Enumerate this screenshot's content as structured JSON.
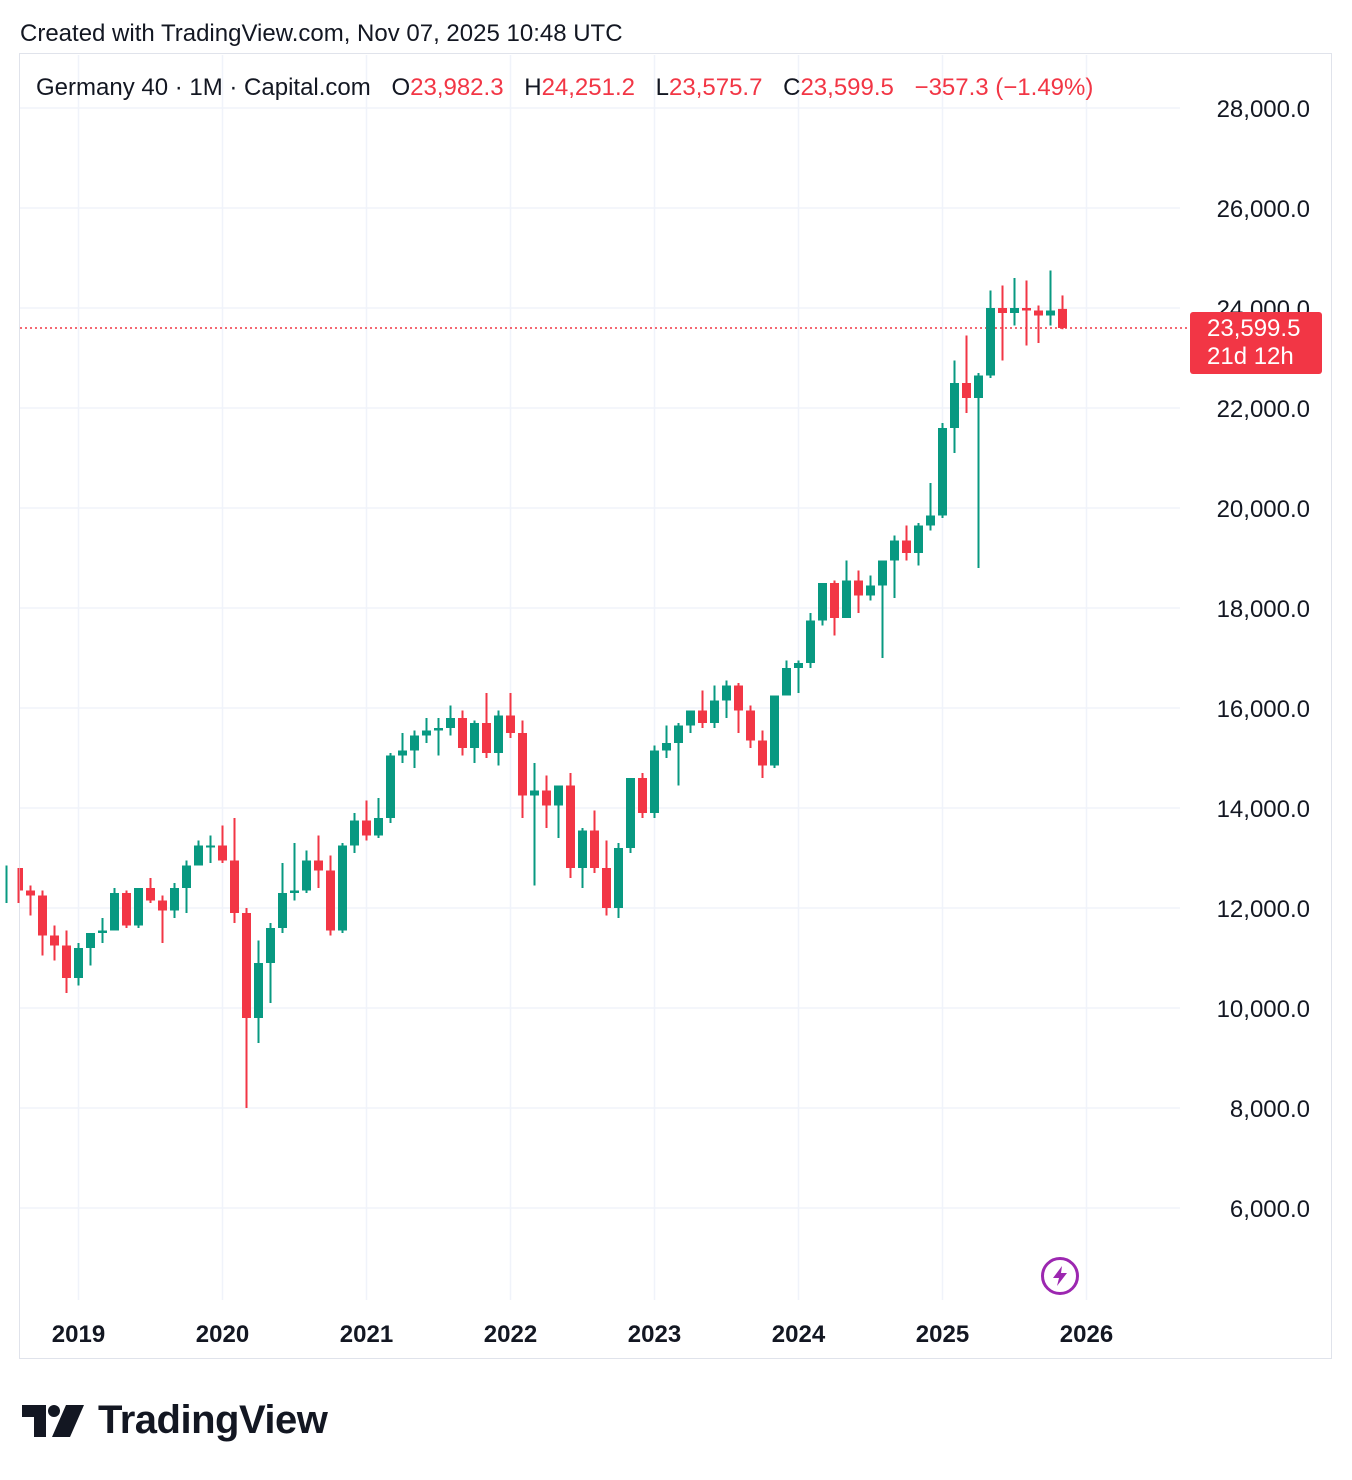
{
  "header": {
    "created_text": "Created with TradingView.com, Nov 07, 2025 10:48 UTC"
  },
  "legend": {
    "symbol": "Germany 40 · 1M · Capital.com",
    "open_label": "O",
    "open_value": "23,982.3",
    "high_label": "H",
    "high_value": "24,251.2",
    "low_label": "L",
    "low_value": "23,575.7",
    "close_label": "C",
    "close_value": "23,599.5",
    "change": "−357.3 (−1.49%)"
  },
  "price_tag": {
    "price": "23,599.5",
    "countdown": "21d 12h"
  },
  "brand": {
    "name": "TradingView"
  },
  "colors": {
    "up": "#089981",
    "down": "#f23645",
    "grid": "#f0f3fa",
    "text": "#131722",
    "accent": "#9c27b0"
  },
  "chart_data": {
    "type": "candlestick",
    "timeframe": "1M",
    "y_ticks": [
      "6,000.0",
      "8,000.0",
      "10,000.0",
      "12,000.0",
      "14,000.0",
      "16,000.0",
      "18,000.0",
      "20,000.0",
      "22,000.0",
      "24,000.0",
      "26,000.0",
      "28,000.0"
    ],
    "x_ticks": [
      "2019",
      "2020",
      "2021",
      "2022",
      "2023",
      "2024",
      "2025",
      "2026"
    ],
    "ylim": [
      4000,
      29000
    ],
    "grid": true,
    "current_price": 23599.5,
    "candles": [
      {
        "t": "2018-07",
        "o": 12300,
        "h": 12850,
        "l": 12100,
        "c": 12800
      },
      {
        "t": "2018-08",
        "o": 12800,
        "h": 12800,
        "l": 12100,
        "c": 12350
      },
      {
        "t": "2018-09",
        "o": 12350,
        "h": 12450,
        "l": 11850,
        "c": 12250
      },
      {
        "t": "2018-10",
        "o": 12250,
        "h": 12350,
        "l": 11050,
        "c": 11450
      },
      {
        "t": "2018-11",
        "o": 11450,
        "h": 11650,
        "l": 10950,
        "c": 11250
      },
      {
        "t": "2018-12",
        "o": 11250,
        "h": 11550,
        "l": 10300,
        "c": 10600
      },
      {
        "t": "2019-01",
        "o": 10600,
        "h": 11300,
        "l": 10450,
        "c": 11200
      },
      {
        "t": "2019-02",
        "o": 11200,
        "h": 11500,
        "l": 10850,
        "c": 11500
      },
      {
        "t": "2019-03",
        "o": 11500,
        "h": 11800,
        "l": 11300,
        "c": 11550
      },
      {
        "t": "2019-04",
        "o": 11550,
        "h": 12400,
        "l": 11550,
        "c": 12300
      },
      {
        "t": "2019-05",
        "o": 12300,
        "h": 12350,
        "l": 11600,
        "c": 11650
      },
      {
        "t": "2019-06",
        "o": 11650,
        "h": 12400,
        "l": 11600,
        "c": 12400
      },
      {
        "t": "2019-07",
        "o": 12400,
        "h": 12600,
        "l": 12100,
        "c": 12150
      },
      {
        "t": "2019-08",
        "o": 12150,
        "h": 12250,
        "l": 11300,
        "c": 11950
      },
      {
        "t": "2019-09",
        "o": 11950,
        "h": 12500,
        "l": 11800,
        "c": 12400
      },
      {
        "t": "2019-10",
        "o": 12400,
        "h": 12950,
        "l": 11900,
        "c": 12850
      },
      {
        "t": "2019-11",
        "o": 12850,
        "h": 13350,
        "l": 12850,
        "c": 13250
      },
      {
        "t": "2019-12",
        "o": 13250,
        "h": 13450,
        "l": 12900,
        "c": 13250
      },
      {
        "t": "2020-01",
        "o": 13250,
        "h": 13650,
        "l": 12900,
        "c": 12950
      },
      {
        "t": "2020-02",
        "o": 12950,
        "h": 13800,
        "l": 11700,
        "c": 11900
      },
      {
        "t": "2020-03",
        "o": 11900,
        "h": 12000,
        "l": 8000,
        "c": 9800
      },
      {
        "t": "2020-04",
        "o": 9800,
        "h": 11350,
        "l": 9300,
        "c": 10900
      },
      {
        "t": "2020-05",
        "o": 10900,
        "h": 11700,
        "l": 10100,
        "c": 11600
      },
      {
        "t": "2020-06",
        "o": 11600,
        "h": 12900,
        "l": 11500,
        "c": 12300
      },
      {
        "t": "2020-07",
        "o": 12300,
        "h": 13300,
        "l": 12150,
        "c": 12350
      },
      {
        "t": "2020-08",
        "o": 12350,
        "h": 13150,
        "l": 12300,
        "c": 12950
      },
      {
        "t": "2020-09",
        "o": 12950,
        "h": 13450,
        "l": 12400,
        "c": 12750
      },
      {
        "t": "2020-10",
        "o": 12750,
        "h": 13050,
        "l": 11450,
        "c": 11550
      },
      {
        "t": "2020-11",
        "o": 11550,
        "h": 13300,
        "l": 11500,
        "c": 13250
      },
      {
        "t": "2020-12",
        "o": 13250,
        "h": 13900,
        "l": 13100,
        "c": 13750
      },
      {
        "t": "2021-01",
        "o": 13750,
        "h": 14150,
        "l": 13350,
        "c": 13450
      },
      {
        "t": "2021-02",
        "o": 13450,
        "h": 14200,
        "l": 13400,
        "c": 13800
      },
      {
        "t": "2021-03",
        "o": 13800,
        "h": 15100,
        "l": 13700,
        "c": 15050
      },
      {
        "t": "2021-04",
        "o": 15050,
        "h": 15500,
        "l": 14900,
        "c": 15150
      },
      {
        "t": "2021-05",
        "o": 15150,
        "h": 15550,
        "l": 14800,
        "c": 15450
      },
      {
        "t": "2021-06",
        "o": 15450,
        "h": 15800,
        "l": 15300,
        "c": 15550
      },
      {
        "t": "2021-07",
        "o": 15550,
        "h": 15800,
        "l": 15050,
        "c": 15600
      },
      {
        "t": "2021-08",
        "o": 15600,
        "h": 16050,
        "l": 15450,
        "c": 15800
      },
      {
        "t": "2021-09",
        "o": 15800,
        "h": 15950,
        "l": 15050,
        "c": 15200
      },
      {
        "t": "2021-10",
        "o": 15200,
        "h": 15750,
        "l": 14900,
        "c": 15700
      },
      {
        "t": "2021-11",
        "o": 15700,
        "h": 16300,
        "l": 15000,
        "c": 15100
      },
      {
        "t": "2021-12",
        "o": 15100,
        "h": 15950,
        "l": 14850,
        "c": 15850
      },
      {
        "t": "2022-01",
        "o": 15850,
        "h": 16300,
        "l": 15400,
        "c": 15500
      },
      {
        "t": "2022-02",
        "o": 15500,
        "h": 15750,
        "l": 13800,
        "c": 14250
      },
      {
        "t": "2022-03",
        "o": 14250,
        "h": 14900,
        "l": 12450,
        "c": 14350
      },
      {
        "t": "2022-04",
        "o": 14350,
        "h": 14650,
        "l": 13600,
        "c": 14050
      },
      {
        "t": "2022-05",
        "o": 14050,
        "h": 14450,
        "l": 13400,
        "c": 14450
      },
      {
        "t": "2022-06",
        "o": 14450,
        "h": 14700,
        "l": 12600,
        "c": 12800
      },
      {
        "t": "2022-07",
        "o": 12800,
        "h": 13600,
        "l": 12400,
        "c": 13550
      },
      {
        "t": "2022-08",
        "o": 13550,
        "h": 13950,
        "l": 12700,
        "c": 12800
      },
      {
        "t": "2022-09",
        "o": 12800,
        "h": 13350,
        "l": 11850,
        "c": 12000
      },
      {
        "t": "2022-10",
        "o": 12000,
        "h": 13300,
        "l": 11800,
        "c": 13200
      },
      {
        "t": "2022-11",
        "o": 13200,
        "h": 14600,
        "l": 13100,
        "c": 14600
      },
      {
        "t": "2022-12",
        "o": 14600,
        "h": 14700,
        "l": 13800,
        "c": 13900
      },
      {
        "t": "2023-01",
        "o": 13900,
        "h": 15250,
        "l": 13800,
        "c": 15150
      },
      {
        "t": "2023-02",
        "o": 15150,
        "h": 15650,
        "l": 15000,
        "c": 15300
      },
      {
        "t": "2023-03",
        "o": 15300,
        "h": 15700,
        "l": 14450,
        "c": 15650
      },
      {
        "t": "2023-04",
        "o": 15650,
        "h": 15950,
        "l": 15500,
        "c": 15950
      },
      {
        "t": "2023-05",
        "o": 15950,
        "h": 16350,
        "l": 15600,
        "c": 15700
      },
      {
        "t": "2023-06",
        "o": 15700,
        "h": 16450,
        "l": 15600,
        "c": 16150
      },
      {
        "t": "2023-07",
        "o": 16150,
        "h": 16550,
        "l": 15800,
        "c": 16450
      },
      {
        "t": "2023-08",
        "o": 16450,
        "h": 16500,
        "l": 15500,
        "c": 15950
      },
      {
        "t": "2023-09",
        "o": 15950,
        "h": 16050,
        "l": 15200,
        "c": 15350
      },
      {
        "t": "2023-10",
        "o": 15350,
        "h": 15550,
        "l": 14600,
        "c": 14850
      },
      {
        "t": "2023-11",
        "o": 14850,
        "h": 16250,
        "l": 14800,
        "c": 16250
      },
      {
        "t": "2023-12",
        "o": 16250,
        "h": 16950,
        "l": 16250,
        "c": 16800
      },
      {
        "t": "2024-01",
        "o": 16800,
        "h": 16950,
        "l": 16300,
        "c": 16900
      },
      {
        "t": "2024-02",
        "o": 16900,
        "h": 17900,
        "l": 16800,
        "c": 17750
      },
      {
        "t": "2024-03",
        "o": 17750,
        "h": 18500,
        "l": 17650,
        "c": 18500
      },
      {
        "t": "2024-04",
        "o": 18500,
        "h": 18550,
        "l": 17450,
        "c": 17800
      },
      {
        "t": "2024-05",
        "o": 17800,
        "h": 18950,
        "l": 17800,
        "c": 18550
      },
      {
        "t": "2024-06",
        "o": 18550,
        "h": 18750,
        "l": 17900,
        "c": 18250
      },
      {
        "t": "2024-07",
        "o": 18250,
        "h": 18650,
        "l": 18150,
        "c": 18450
      },
      {
        "t": "2024-08",
        "o": 18450,
        "h": 18950,
        "l": 17000,
        "c": 18950
      },
      {
        "t": "2024-09",
        "o": 18950,
        "h": 19450,
        "l": 18200,
        "c": 19350
      },
      {
        "t": "2024-10",
        "o": 19350,
        "h": 19650,
        "l": 18950,
        "c": 19100
      },
      {
        "t": "2024-11",
        "o": 19100,
        "h": 19700,
        "l": 18850,
        "c": 19650
      },
      {
        "t": "2024-12",
        "o": 19650,
        "h": 20500,
        "l": 19550,
        "c": 19850
      },
      {
        "t": "2025-01",
        "o": 19850,
        "h": 21700,
        "l": 19800,
        "c": 21600
      },
      {
        "t": "2025-02",
        "o": 21600,
        "h": 22950,
        "l": 21100,
        "c": 22500
      },
      {
        "t": "2025-03",
        "o": 22500,
        "h": 23450,
        "l": 21900,
        "c": 22200
      },
      {
        "t": "2025-04",
        "o": 22200,
        "h": 22700,
        "l": 18800,
        "c": 22650
      },
      {
        "t": "2025-05",
        "o": 22650,
        "h": 24350,
        "l": 22600,
        "c": 24000
      },
      {
        "t": "2025-06",
        "o": 24000,
        "h": 24450,
        "l": 22950,
        "c": 23900
      },
      {
        "t": "2025-07",
        "o": 23900,
        "h": 24600,
        "l": 23650,
        "c": 24000
      },
      {
        "t": "2025-08",
        "o": 24000,
        "h": 24550,
        "l": 23250,
        "c": 23950
      },
      {
        "t": "2025-09",
        "o": 23950,
        "h": 24050,
        "l": 23300,
        "c": 23850
      },
      {
        "t": "2025-10",
        "o": 23850,
        "h": 24750,
        "l": 23650,
        "c": 23950
      },
      {
        "t": "2025-11",
        "o": 23982.3,
        "h": 24251.2,
        "l": 23575.7,
        "c": 23599.5
      }
    ]
  }
}
